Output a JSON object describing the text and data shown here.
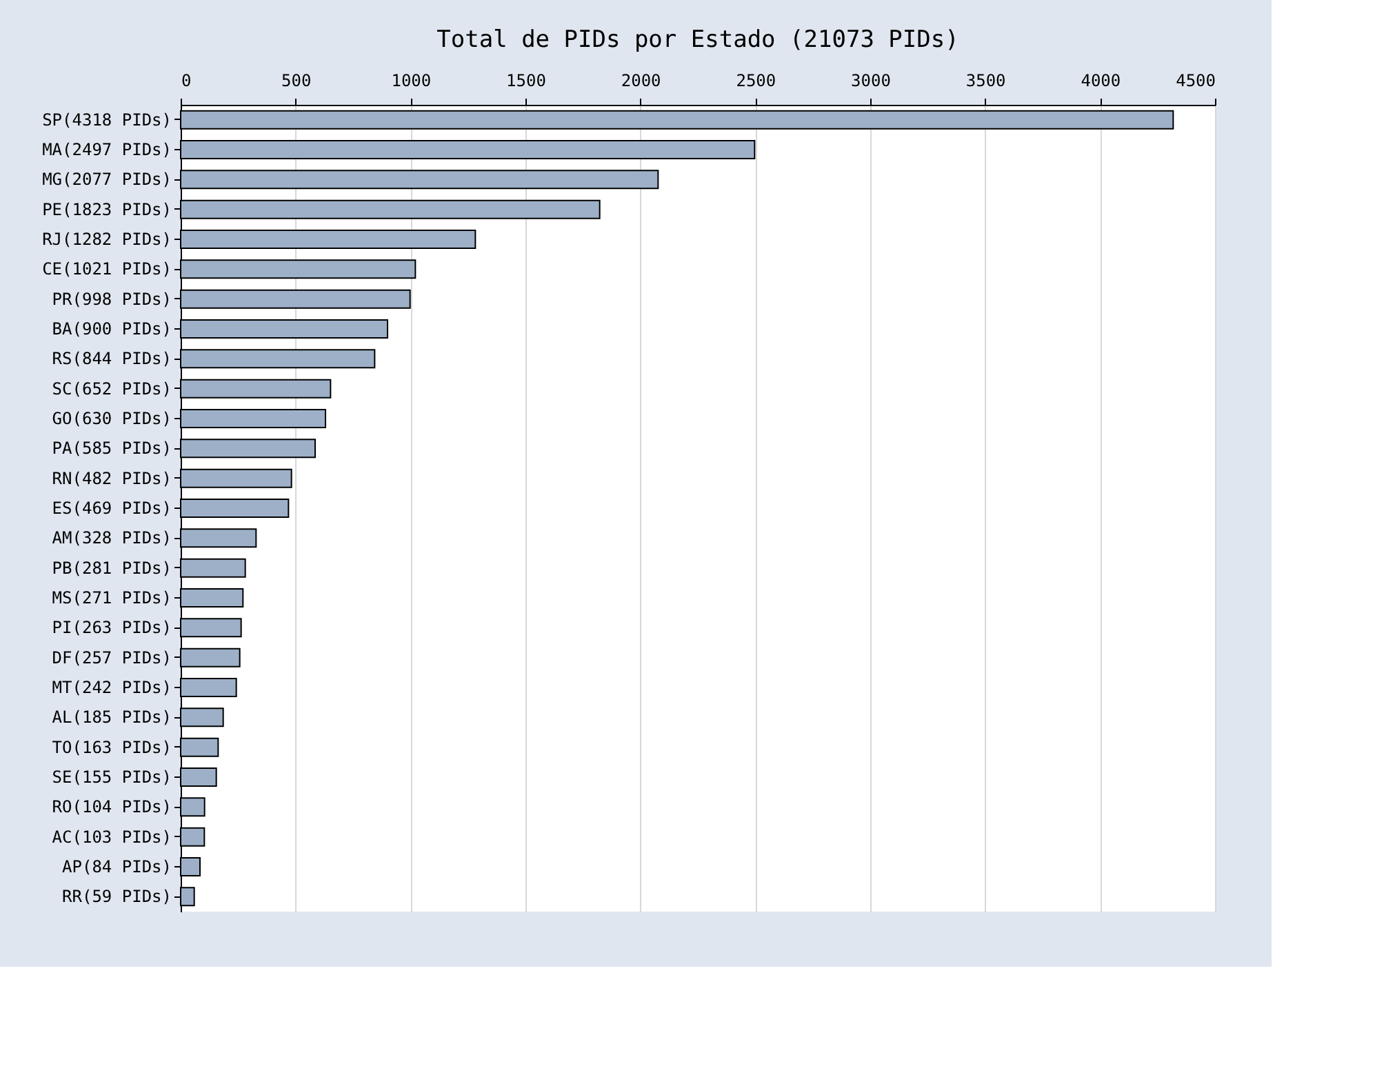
{
  "chart_data": {
    "type": "bar",
    "orientation": "horizontal",
    "title": "Total de PIDs por Estado (21073 PIDs)",
    "categories": [
      "SP(4318 PIDs)",
      "MA(2497 PIDs)",
      "MG(2077 PIDs)",
      "PE(1823 PIDs)",
      "RJ(1282 PIDs)",
      "CE(1021 PIDs)",
      "PR(998 PIDs)",
      "BA(900 PIDs)",
      "RS(844 PIDs)",
      "SC(652 PIDs)",
      "GO(630 PIDs)",
      "PA(585 PIDs)",
      "RN(482 PIDs)",
      "ES(469 PIDs)",
      "AM(328 PIDs)",
      "PB(281 PIDs)",
      "MS(271 PIDs)",
      "PI(263 PIDs)",
      "DF(257 PIDs)",
      "MT(242 PIDs)",
      "AL(185 PIDs)",
      "TO(163 PIDs)",
      "SE(155 PIDs)",
      "RO(104 PIDs)",
      "AC(103 PIDs)",
      "AP(84 PIDs)",
      "RR(59 PIDs)"
    ],
    "values": [
      4318,
      2497,
      2077,
      1823,
      1282,
      1021,
      998,
      900,
      844,
      652,
      630,
      585,
      482,
      469,
      328,
      281,
      271,
      263,
      257,
      242,
      185,
      163,
      155,
      104,
      103,
      84,
      59
    ],
    "color": "#9db0c8",
    "xlim": [
      0,
      4500
    ],
    "xticks": [
      0,
      500,
      1000,
      1500,
      2000,
      2500,
      3000,
      3500,
      4000,
      4500
    ],
    "grid": "x"
  }
}
